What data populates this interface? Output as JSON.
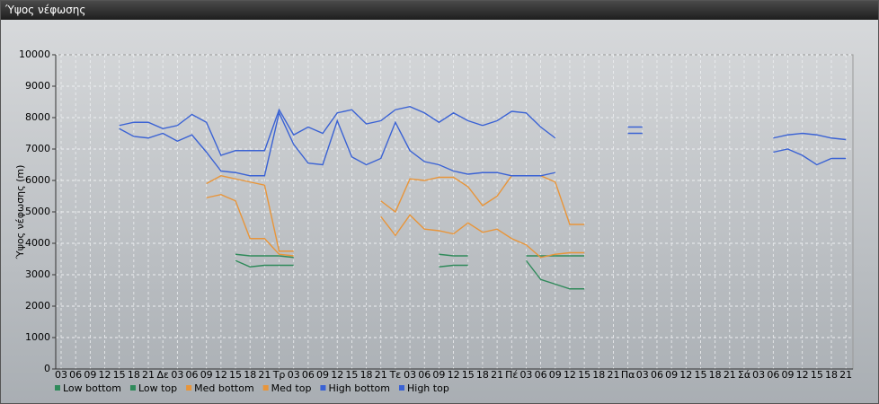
{
  "chart_data": {
    "type": "line",
    "title": "Ύψος νέφωσης",
    "ylabel": "Ύψος νέφωσης (m)",
    "categories": [
      "03",
      "06",
      "09",
      "12",
      "15",
      "18",
      "21",
      "Δε",
      "03",
      "06",
      "09",
      "12",
      "15",
      "18",
      "21",
      "Τρ",
      "03",
      "06",
      "09",
      "12",
      "15",
      "18",
      "21",
      "Τε",
      "03",
      "06",
      "09",
      "12",
      "15",
      "18",
      "21",
      "Πέ",
      "03",
      "06",
      "09",
      "12",
      "15",
      "18",
      "21",
      "Πα",
      "03",
      "06",
      "09",
      "12",
      "15",
      "18",
      "21",
      "Σά",
      "03",
      "06",
      "09",
      "12",
      "15",
      "18",
      "21"
    ],
    "ylim": [
      0,
      10000
    ],
    "yticks": [
      0,
      1000,
      2000,
      3000,
      4000,
      5000,
      6000,
      7000,
      8000,
      9000,
      10000
    ],
    "grid": true,
    "series": [
      {
        "name": "Low bottom",
        "color": "#2f8a5a",
        "values": [
          null,
          null,
          null,
          null,
          null,
          null,
          null,
          null,
          null,
          null,
          null,
          null,
          3450,
          3250,
          3300,
          3300,
          3300,
          null,
          null,
          null,
          null,
          null,
          null,
          null,
          null,
          null,
          3250,
          3300,
          3300,
          null,
          null,
          null,
          3450,
          2850,
          2700,
          2550,
          2550,
          null,
          null,
          null,
          null,
          null,
          null,
          null,
          null,
          null,
          null,
          null,
          null,
          null,
          null,
          null,
          null,
          null,
          null
        ]
      },
      {
        "name": "Low top",
        "color": "#2f8a5a",
        "values": [
          null,
          null,
          null,
          null,
          null,
          null,
          null,
          null,
          null,
          null,
          null,
          null,
          3650,
          3600,
          3600,
          3600,
          3550,
          null,
          null,
          null,
          null,
          null,
          null,
          null,
          null,
          null,
          3650,
          3600,
          3600,
          null,
          null,
          null,
          3600,
          3600,
          3600,
          3600,
          3600,
          null,
          null,
          null,
          null,
          null,
          null,
          null,
          null,
          null,
          null,
          null,
          null,
          null,
          null,
          null,
          null,
          null,
          null
        ]
      },
      {
        "name": "Med bottom",
        "color": "#e8953a",
        "values": [
          null,
          null,
          null,
          null,
          null,
          null,
          null,
          null,
          null,
          null,
          5450,
          5550,
          5350,
          4150,
          4150,
          3650,
          3600,
          null,
          null,
          null,
          null,
          null,
          4850,
          4250,
          4900,
          4450,
          4400,
          4300,
          4650,
          4350,
          4450,
          4150,
          3950,
          3550,
          3650,
          3700,
          3700,
          null,
          null,
          null,
          null,
          null,
          null,
          null,
          null,
          null,
          null,
          null,
          null,
          null,
          null,
          null,
          null,
          null,
          null
        ]
      },
      {
        "name": "Med top",
        "color": "#e8953a",
        "values": [
          null,
          null,
          null,
          null,
          null,
          null,
          null,
          null,
          null,
          null,
          5900,
          6150,
          6050,
          5950,
          5850,
          3750,
          3750,
          null,
          null,
          null,
          null,
          null,
          5350,
          5000,
          6050,
          6000,
          6100,
          6100,
          5800,
          5200,
          5500,
          6150,
          6150,
          6150,
          5950,
          4600,
          4600,
          null,
          null,
          null,
          null,
          null,
          null,
          null,
          null,
          null,
          null,
          null,
          null,
          null,
          null,
          null,
          null,
          null,
          null
        ]
      },
      {
        "name": "High bottom",
        "color": "#3a62d4",
        "values": [
          null,
          null,
          null,
          null,
          7650,
          7400,
          7350,
          7500,
          7250,
          7450,
          6900,
          6300,
          6250,
          6150,
          6150,
          8150,
          7150,
          6550,
          6500,
          7900,
          6750,
          6500,
          6700,
          7850,
          6950,
          6600,
          6500,
          6300,
          6200,
          6250,
          6250,
          6150,
          6150,
          6150,
          6250,
          null,
          null,
          null,
          null,
          7500,
          7500,
          null,
          null,
          null,
          null,
          null,
          null,
          null,
          null,
          6900,
          7000,
          6800,
          6500,
          6700,
          6700
        ]
      },
      {
        "name": "High top",
        "color": "#3a62d4",
        "values": [
          null,
          null,
          null,
          null,
          7750,
          7850,
          7850,
          7650,
          7750,
          8100,
          7850,
          6800,
          6950,
          6950,
          6950,
          8250,
          7450,
          7700,
          7500,
          8150,
          8250,
          7800,
          7900,
          8250,
          8350,
          8150,
          7850,
          8150,
          7900,
          7750,
          7900,
          8200,
          8150,
          7700,
          7350,
          null,
          null,
          null,
          null,
          7700,
          7700,
          null,
          null,
          null,
          null,
          null,
          null,
          null,
          null,
          7350,
          7450,
          7500,
          7450,
          7350,
          7300
        ]
      }
    ]
  }
}
